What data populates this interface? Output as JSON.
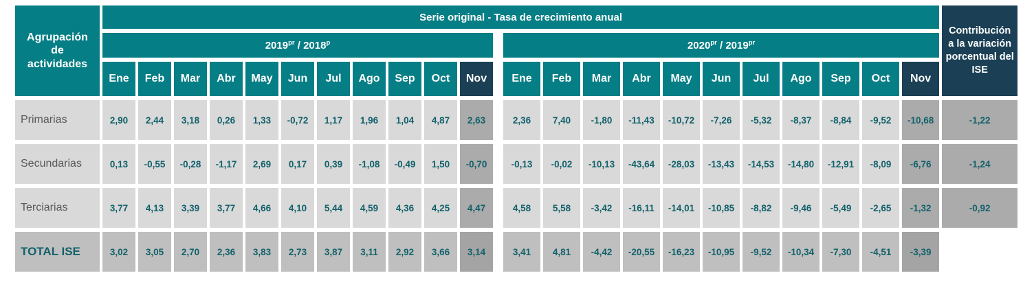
{
  "header": {
    "row_group_lines": [
      "Agrupación",
      "de",
      "actividades"
    ],
    "title": "Serie original - Tasa de crecimiento anual",
    "groups": [
      {
        "year_a": "2019",
        "sup_a": "pr",
        "separator": " / ",
        "year_b": "2018",
        "sup_b": "p"
      },
      {
        "year_a": "2020",
        "sup_a": "pr",
        "separator": " / ",
        "year_b": "2019",
        "sup_b": "pr"
      }
    ],
    "contribution_lines": [
      "Contribución",
      "a la variación",
      "porcentual del",
      "ISE"
    ]
  },
  "months": [
    "Ene",
    "Feb",
    "Mar",
    "Abr",
    "May",
    "Jun",
    "Jul",
    "Ago",
    "Sep",
    "Oct",
    "Nov"
  ],
  "format": {
    "decimal_separator": ",",
    "decimals": 2
  },
  "colors": {
    "teal_header": "#067e85",
    "navy_header": "#1b3f54",
    "cell_light_gray": "#d9d9d9",
    "cell_total_gray": "#bfbfbf",
    "cell_nov_gray": "#ababab",
    "cell_nov_total_gray": "#a4a4a4",
    "value_text": "#12616b",
    "label_text": "#595959",
    "header_text": "#ffffff"
  },
  "chart_data": {
    "type": "table",
    "title": "Serie original - Tasa de crecimiento anual",
    "row_group_header": "Agrupación de actividades",
    "column_groups": [
      "2019pr / 2018p",
      "2020pr / 2019pr"
    ],
    "months": [
      "Ene",
      "Feb",
      "Mar",
      "Abr",
      "May",
      "Jun",
      "Jul",
      "Ago",
      "Sep",
      "Oct",
      "Nov"
    ],
    "contribution_column": "Contribución a la variación porcentual del ISE",
    "rows": [
      {
        "label": "Primarias",
        "is_total": false,
        "growth_2019_vs_2018": [
          2.9,
          2.44,
          3.18,
          0.26,
          1.33,
          -0.72,
          1.17,
          1.96,
          1.04,
          4.87,
          2.63
        ],
        "growth_2020_vs_2019": [
          2.36,
          7.4,
          -1.8,
          -11.43,
          -10.72,
          -7.26,
          -5.32,
          -8.37,
          -8.84,
          -9.52,
          -10.68
        ],
        "contribution_ise": -1.22
      },
      {
        "label": "Secundarias",
        "is_total": false,
        "growth_2019_vs_2018": [
          0.13,
          -0.55,
          -0.28,
          -1.17,
          2.69,
          0.17,
          0.39,
          -1.08,
          -0.49,
          1.5,
          -0.7
        ],
        "growth_2020_vs_2019": [
          -0.13,
          -0.02,
          -10.13,
          -43.64,
          -28.03,
          -13.43,
          -14.53,
          -14.8,
          -12.91,
          -8.09,
          -6.76
        ],
        "contribution_ise": -1.24
      },
      {
        "label": "Terciarias",
        "is_total": false,
        "growth_2019_vs_2018": [
          3.77,
          4.13,
          3.39,
          3.77,
          4.66,
          4.1,
          5.44,
          4.59,
          4.36,
          4.25,
          4.47
        ],
        "growth_2020_vs_2019": [
          4.58,
          5.58,
          -3.42,
          -16.11,
          -14.01,
          -10.85,
          -8.82,
          -9.46,
          -5.49,
          -2.65,
          -1.32
        ],
        "contribution_ise": -0.92
      },
      {
        "label": "TOTAL ISE",
        "is_total": true,
        "growth_2019_vs_2018": [
          3.02,
          3.05,
          2.7,
          2.36,
          3.83,
          2.73,
          3.87,
          3.11,
          2.92,
          3.66,
          3.14
        ],
        "growth_2020_vs_2019": [
          3.41,
          4.81,
          -4.42,
          -20.55,
          -16.23,
          -10.95,
          -9.52,
          -10.34,
          -7.3,
          -4.51,
          -3.39
        ],
        "contribution_ise": null
      }
    ]
  }
}
